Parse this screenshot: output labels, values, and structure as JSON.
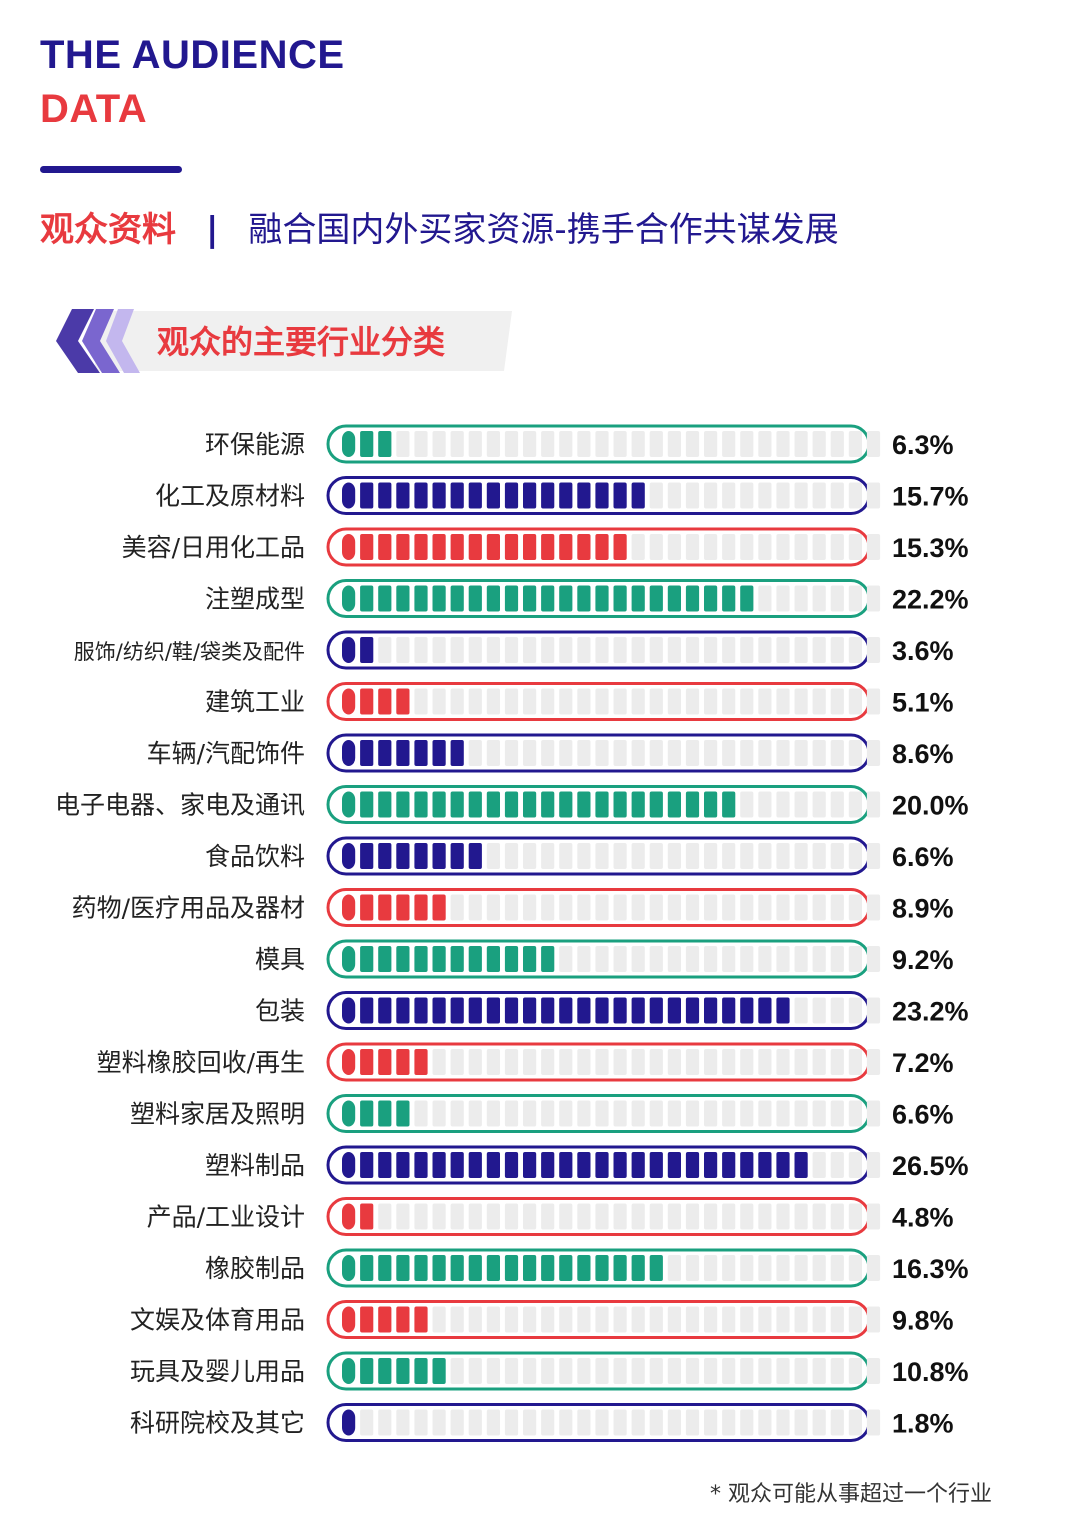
{
  "brand": {
    "line1": "THE AUDIENCE",
    "line2": "DATA"
  },
  "subtitle": {
    "label": "观众资料",
    "separator": "|",
    "tagline": "融合国内外买家资源-携手合作共谋发展"
  },
  "section": {
    "title": "观众的主要行业分类"
  },
  "colors": {
    "navy": "#22188f",
    "red": "#e83a3f",
    "teal": "#1aa07f",
    "track": "#ececec",
    "purple": "#6a55c4"
  },
  "chart_data": {
    "type": "bar",
    "title": "观众的主要行业分类",
    "orientation": "horizontal",
    "total_segments": 30,
    "categories": [
      "环保能源",
      "化工及原材料",
      "美容/日用化工品",
      "注塑成型",
      "服饰/纺织/鞋/袋类及配件",
      "建筑工业",
      "车辆/汽配饰件",
      "电子电器、家电及通讯",
      "食品饮料",
      "药物/医疗用品及器材",
      "模具",
      "包装",
      "塑料橡胶回收/再生",
      "塑料家居及照明",
      "塑料制品",
      "产品/工业设计",
      "橡胶制品",
      "文娱及体育用品",
      "玩具及婴儿用品",
      "科研院校及其它"
    ],
    "values": [
      6.3,
      15.7,
      15.3,
      22.2,
      3.6,
      5.1,
      8.6,
      20.0,
      6.6,
      8.9,
      9.2,
      23.2,
      7.2,
      6.6,
      26.5,
      4.8,
      16.3,
      9.8,
      10.8,
      1.8
    ],
    "value_labels": [
      "6.3%",
      "15.7%",
      "15.3%",
      "22.2%",
      "3.6%",
      "5.1%",
      "8.6%",
      "20.0%",
      "6.6%",
      "8.9%",
      "9.2%",
      "23.2%",
      "7.2%",
      "6.6%",
      "26.5%",
      "4.8%",
      "16.3%",
      "9.8%",
      "10.8%",
      "1.8%"
    ],
    "filled_segments": [
      3,
      17,
      16,
      23,
      2,
      4,
      7,
      22,
      8,
      6,
      12,
      25,
      5,
      4,
      26,
      2,
      18,
      5,
      6,
      1
    ],
    "bar_colors": [
      "teal",
      "navy",
      "red",
      "teal",
      "navy",
      "red",
      "navy",
      "teal",
      "navy",
      "red",
      "teal",
      "navy",
      "red",
      "teal",
      "navy",
      "red",
      "teal",
      "red",
      "teal",
      "navy"
    ]
  },
  "footnote": "* 观众可能从事超过一个行业"
}
